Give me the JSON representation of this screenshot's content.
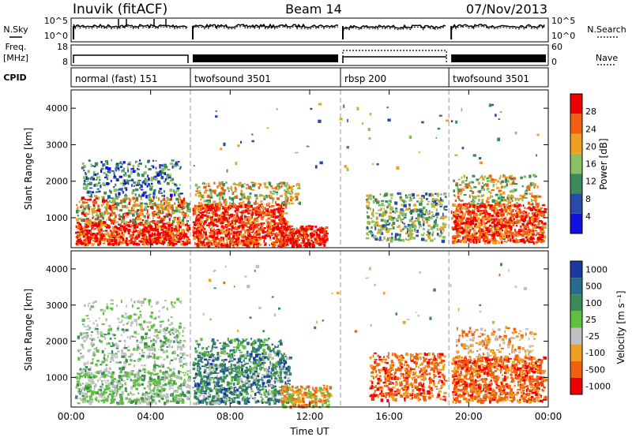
{
  "header": {
    "station": "Inuvik (fitACF)",
    "beam": "Beam 14",
    "date": "07/Nov/2013"
  },
  "side_labels": {
    "nsky": "N.Sky",
    "freq_line1": "Freq.",
    "freq_line2": "[MHz]",
    "cpid": "CPID",
    "nsearch": "N.Search",
    "nave": "Nave"
  },
  "noise_axis": {
    "left_ticks": [
      "10^5",
      "10^0"
    ],
    "right_ticks": [
      "10^5",
      "10^0"
    ]
  },
  "freq_axis": {
    "left_ticks": [
      "18",
      "8"
    ],
    "right_ticks": [
      "60",
      "0"
    ]
  },
  "cpid_segments": [
    {
      "label": "normal (fast) 151",
      "start": 0.0,
      "end": 6.0
    },
    {
      "label": "twofsound 3501",
      "start": 6.0,
      "end": 13.55
    },
    {
      "label": "rbsp 200",
      "start": 13.55,
      "end": 19.0
    },
    {
      "label": "twofsound 3501",
      "start": 19.0,
      "end": 24.0
    }
  ],
  "chart_data": [
    {
      "type": "heatmap",
      "ylabel": "Slant Range [km]",
      "yticks": [
        "1000",
        "2000",
        "3000",
        "4000"
      ],
      "ylim": [
        180,
        4500
      ],
      "colorbar_label": "Power [dB]",
      "colorbar_ticks": [
        "4",
        "8",
        "12",
        "16",
        "20",
        "24",
        "28"
      ],
      "colors": [
        "#1010e0",
        "#2a4aa8",
        "#3c8a5a",
        "#8ac060",
        "#f0a020",
        "#f06010",
        "#f00000"
      ],
      "vmin": 0,
      "vmax": 32
    },
    {
      "type": "heatmap",
      "ylabel": "Slant Range [km]",
      "yticks": [
        "1000",
        "2000",
        "3000",
        "4000"
      ],
      "ylim": [
        180,
        4500
      ],
      "colorbar_label": "Velocity [m s⁻¹]",
      "colorbar_ticks": [
        "1000",
        "500",
        "100",
        "25",
        "-25",
        "-100",
        "-500",
        "-1000"
      ],
      "colors": [
        "#1a3aa0",
        "#2a6a8a",
        "#3c8a5a",
        "#60c040",
        "#c0c0c0",
        "#f0a020",
        "#f06010",
        "#f00000"
      ]
    }
  ],
  "time_axis": {
    "xlabel": "Time UT",
    "ticks": [
      "00:00",
      "04:00",
      "08:00",
      "12:00",
      "16:00",
      "20:00",
      "00:00"
    ],
    "xlim": [
      0,
      24
    ]
  }
}
